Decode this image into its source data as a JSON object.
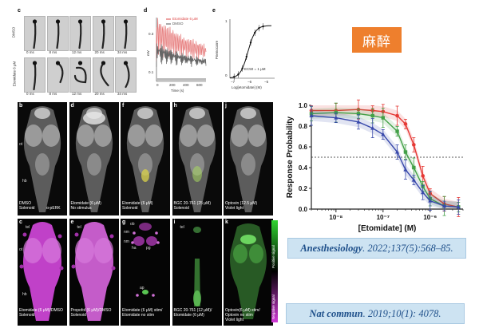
{
  "badge": {
    "text": "麻醉",
    "color": "#ee7f2d"
  },
  "refs": {
    "ref1": {
      "journal": "Anesthesiology",
      "rest": ". 2022;137(5):568–85."
    },
    "ref2": {
      "journal": "Nat commun",
      "rest": ". 2019;10(1): 4078."
    }
  },
  "fig": {
    "c": {
      "label": "c",
      "times": [
        "0 ms",
        "8 ms",
        "12 ms",
        "20 ms",
        "34 ms"
      ],
      "row1": "DMSO",
      "row2": "Etomidate 6 μM"
    },
    "d": {
      "label": "d",
      "legend": [
        "Etomidate 6 μM",
        "DMSO"
      ],
      "ylabel": "mV",
      "xlabel": "Time (s)",
      "xticks": [
        "0",
        "200",
        "400",
        "600"
      ],
      "yticks": [
        "0.3",
        "0.1"
      ]
    },
    "e": {
      "label": "e",
      "ylabel": "Pnenocarre",
      "xlabel": "Log[etomidate] (M)",
      "xticks": [
        "−7",
        "−6",
        "−5"
      ],
      "yticks": [
        "1",
        "0"
      ],
      "annot": "EC50 = 1 μM"
    },
    "top": [
      {
        "label": "b",
        "cap1": "DMSO",
        "cap2": "Solenoid",
        "extra": "α-pERK",
        "ot": "ot",
        "hb": "hb"
      },
      {
        "label": "d",
        "cap1": "Etomidate (6 μM)",
        "cap2": "No stimulus"
      },
      {
        "label": "f",
        "cap1": "Etomidate (6 μM)",
        "cap2": "Solenoid"
      },
      {
        "label": "h",
        "cap1": "BGC 20-761 (25 μM)",
        "cap2": "Solenoid"
      },
      {
        "label": "j",
        "cap1": "Optovin (12.5 μM)",
        "cap2": "Violet light"
      }
    ],
    "bottom": [
      {
        "label": "c",
        "cap1": "Etomidate (6 μM)/DMSO",
        "cap2": "Solenoid",
        "tel": "tel",
        "ot": "ot",
        "hb": "hb"
      },
      {
        "label": "e",
        "cap1": "Propofol (6 μM)/DMSO",
        "cap2": "Solenoid",
        "tel": "tel"
      },
      {
        "label": "g",
        "cap1": "Etomidate (6 μM) stim/",
        "cap2": "Etomidate no stim",
        "ob": "ob",
        "nm": "nm",
        "ha": "ha",
        "pg": "pg",
        "ap": "ap"
      },
      {
        "label": "i",
        "cap1": "BGC 20-761 (12 μM)/",
        "cap2": "Etomidate (6 μM)",
        "tel": "tel"
      },
      {
        "label": "k",
        "cap1": "Optovin(6 μM) stim/",
        "cap2": "Optovin no stim",
        "cap3": "Violet light"
      }
    ],
    "scale": {
      "positive": "Positive signal",
      "negative": "Negative signal"
    }
  },
  "chart_data": {
    "type": "line",
    "xlabel": "[Etomidate] (M)",
    "ylabel": "Response Probability",
    "xscale": "log",
    "xlim": [
      3e-09,
      5e-06
    ],
    "ylim": [
      0,
      1.0
    ],
    "xticks": [
      "10⁻⁸",
      "10⁻⁷",
      "10⁻⁶"
    ],
    "yticks": [
      "0.0",
      "0.2",
      "0.4",
      "0.6",
      "0.8",
      "1.0"
    ],
    "threshold": 0.5,
    "x": [
      3e-09,
      1e-08,
      3e-08,
      6e-08,
      1e-07,
      2e-07,
      3e-07,
      4.5e-07,
      7e-07,
      1e-06,
      2e-06,
      4e-06
    ],
    "series": [
      {
        "color": "#e53935",
        "values": [
          0.95,
          0.95,
          0.96,
          0.95,
          0.94,
          0.9,
          0.82,
          0.62,
          0.32,
          0.15,
          0.05,
          0.02
        ]
      },
      {
        "color": "#43a047",
        "values": [
          0.92,
          0.93,
          0.92,
          0.9,
          0.88,
          0.75,
          0.55,
          0.4,
          0.22,
          0.1,
          0.03,
          0.02
        ]
      },
      {
        "color": "#3949ab",
        "values": [
          0.9,
          0.88,
          0.84,
          0.78,
          0.72,
          0.55,
          0.38,
          0.28,
          0.16,
          0.08,
          0.03,
          0.02
        ]
      }
    ]
  }
}
